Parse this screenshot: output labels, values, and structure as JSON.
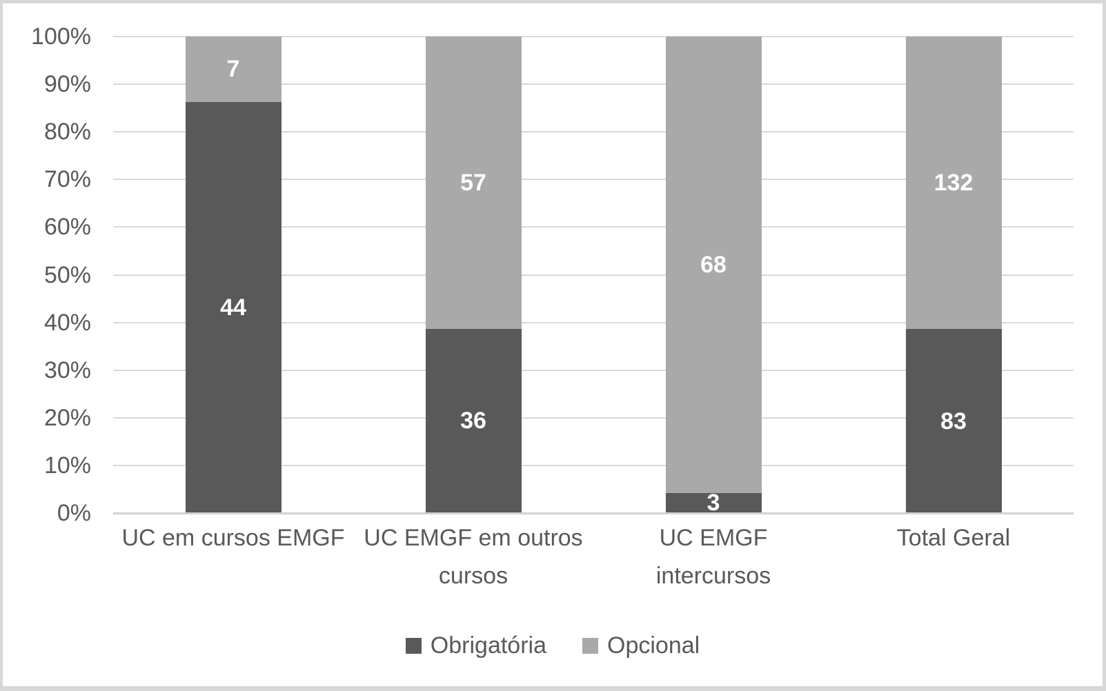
{
  "chart_data": {
    "type": "bar",
    "subtype": "100%-stacked-column",
    "title": "",
    "xlabel": "",
    "ylabel": "",
    "categories": [
      "UC em cursos EMGF",
      "UC EMGF em outros cursos",
      "UC EMGF intercursos",
      "Total Geral"
    ],
    "category_display_lines": [
      [
        "UC em cursos EMGF"
      ],
      [
        "UC EMGF em outros",
        "cursos"
      ],
      [
        "UC EMGF",
        "intercursos"
      ],
      [
        "Total Geral"
      ]
    ],
    "series": [
      {
        "name": "Obrigatória",
        "color": "#595959",
        "values": [
          44,
          36,
          3,
          83
        ]
      },
      {
        "name": "Opcional",
        "color": "#a9a9a9",
        "values": [
          7,
          57,
          68,
          132
        ]
      }
    ],
    "ylim": [
      0,
      100
    ],
    "yticks": [
      0,
      10,
      20,
      30,
      40,
      50,
      60,
      70,
      80,
      90,
      100
    ],
    "ytick_labels": [
      "0%",
      "10%",
      "20%",
      "30%",
      "40%",
      "50%",
      "60%",
      "70%",
      "80%",
      "90%",
      "100%"
    ],
    "grid": true,
    "legend_position": "bottom",
    "colors": {
      "gridline": "#d9d9d9",
      "axis_line": "#d2d2d2",
      "text": "#595959",
      "data_label": "#ffffff",
      "frame_border": "#d7d7d7",
      "background": "#ffffff"
    }
  }
}
